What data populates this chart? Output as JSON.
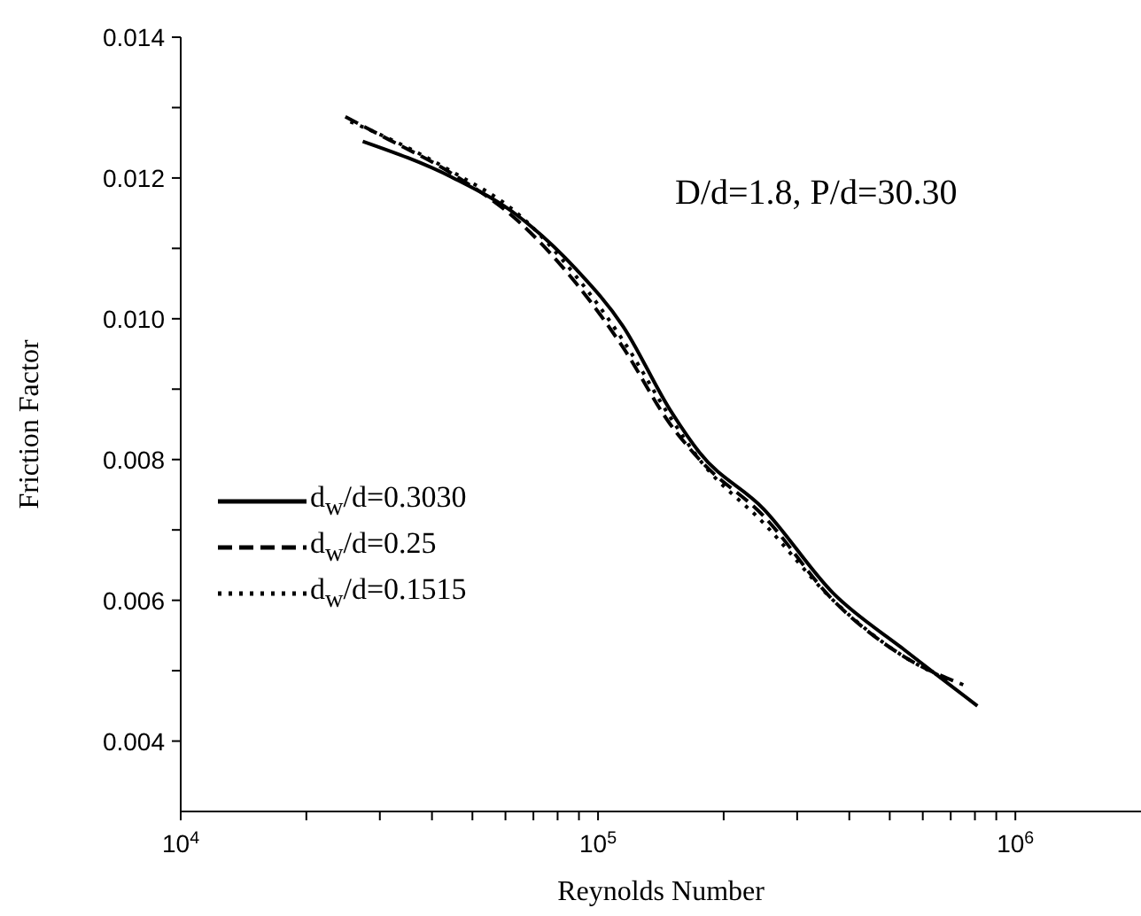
{
  "chart_data": {
    "type": "line",
    "xlabel": "Reynolds Number",
    "ylabel": "Friction Factor",
    "log": "x",
    "xlim": [
      10000,
      2000000
    ],
    "xticks": [
      {
        "value": 10000,
        "label": "10$^{4}$"
      },
      {
        "value": 20000,
        "label": null
      },
      {
        "value": 30000,
        "label": null
      },
      {
        "value": 40000,
        "label": null
      },
      {
        "value": 50000,
        "label": null
      },
      {
        "value": 60000,
        "label": null
      },
      {
        "value": 70000,
        "label": null
      },
      {
        "value": 80000,
        "label": null
      },
      {
        "value": 90000,
        "label": null
      },
      {
        "value": 100000,
        "label": "10$^{5}$"
      },
      {
        "value": 200000,
        "label": null
      },
      {
        "value": 300000,
        "label": null
      },
      {
        "value": 400000,
        "label": null
      },
      {
        "value": 500000,
        "label": null
      },
      {
        "value": 600000,
        "label": null
      },
      {
        "value": 700000,
        "label": null
      },
      {
        "value": 800000,
        "label": null
      },
      {
        "value": 900000,
        "label": null
      },
      {
        "value": 1000000,
        "label": "10$^{6}$"
      }
    ],
    "ylim": [
      0.003,
      0.014
    ],
    "yticks": [
      {
        "value": 0.004,
        "label": "0.004"
      },
      {
        "value": 0.005,
        "label": null
      },
      {
        "value": 0.006,
        "label": "0.006"
      },
      {
        "value": 0.007,
        "label": null
      },
      {
        "value": 0.008,
        "label": "0.008"
      },
      {
        "value": 0.009,
        "label": null
      },
      {
        "value": 0.01,
        "label": "0.010"
      },
      {
        "value": 0.011,
        "label": null
      },
      {
        "value": 0.012,
        "label": "0.012"
      },
      {
        "value": 0.013,
        "label": null
      },
      {
        "value": 0.014,
        "label": "0.014"
      }
    ],
    "grid": false,
    "legend": "left",
    "marker": "none",
    "annotations": [
      "D/d=1.8, P/d=30.30"
    ],
    "series": [
      {
        "name": "d$_{w}$/d=0.3030",
        "color": "#000000",
        "line_style": "solid",
        "x": [
          27300,
          45000,
          64000,
          88700,
          114600,
          149000,
          175000,
          249000,
          366000,
          541000,
          811000
        ],
        "values": [
          0.01252,
          0.012,
          0.01147,
          0.0107,
          0.0099,
          0.0087,
          0.0081,
          0.0073,
          0.0061,
          0.0053,
          0.0045
        ]
      },
      {
        "name": "d$_{w}$/d=0.25",
        "color": "#000000",
        "line_style": "dashed",
        "x": [
          24800,
          30500,
          45000,
          64000,
          88700,
          114600,
          149000,
          175000,
          249000,
          366000,
          541000,
          750000
        ],
        "values": [
          0.01287,
          0.01259,
          0.01205,
          0.0114,
          0.0105,
          0.0096,
          0.0085,
          0.008,
          0.0072,
          0.006,
          0.0052,
          0.0048
        ]
      },
      {
        "name": "d$_{w}$/d=0.1515",
        "color": "#000000",
        "line_style": "dotted",
        "x": [
          25500,
          30500,
          45000,
          64000,
          88700,
          114600,
          149000,
          175000,
          249000,
          366000,
          541000,
          702000
        ],
        "values": [
          0.0128,
          0.0126,
          0.01208,
          0.0115,
          0.0106,
          0.0097,
          0.0086,
          0.008,
          0.0071,
          0.006,
          0.0052,
          0.00485
        ]
      }
    ]
  }
}
